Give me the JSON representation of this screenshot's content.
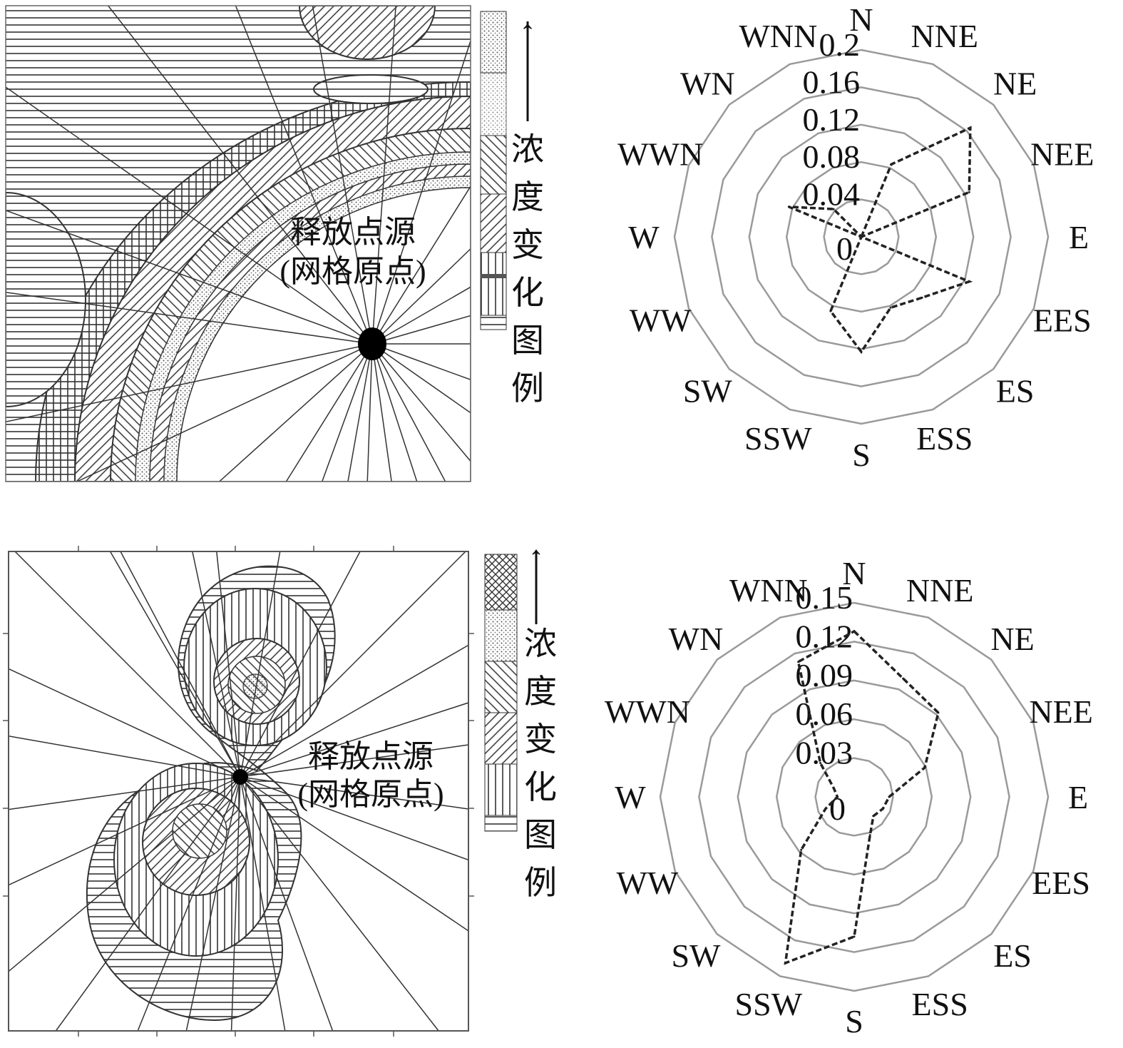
{
  "contour_maps": [
    {
      "source_label": "释放点源",
      "source_sublabel": "(网格原点)",
      "legend_title": [
        "浓",
        "度",
        "变",
        "化",
        "图",
        "例"
      ],
      "legend_arrow": "↑"
    },
    {
      "source_label": "释放点源",
      "source_sublabel": "(网格原点)",
      "legend_title": [
        "浓",
        "度",
        "变",
        "化",
        "图",
        "例"
      ],
      "legend_arrow": "↑"
    }
  ],
  "chart_data": [
    {
      "type": "radar",
      "categories": [
        "N",
        "NNE",
        "NE",
        "NEE",
        "E",
        "EES",
        "ES",
        "ESS",
        "S",
        "SSW",
        "SW",
        "WW",
        "W",
        "WWN",
        "WN",
        "WNN"
      ],
      "values": [
        0,
        0.084,
        0.165,
        0.125,
        0,
        0.125,
        0.092,
        0.082,
        0.123,
        0.086,
        0,
        0,
        0,
        0.084,
        0.042,
        0
      ],
      "ticks": [
        "0",
        "0.04",
        "0.08",
        "0.12",
        "0.16",
        "0.2"
      ],
      "rlim": [
        0,
        0.2
      ],
      "line_style": "dashed",
      "line_color": "#222222",
      "grid_color": "#9a9a9a"
    },
    {
      "type": "radar",
      "categories": [
        "N",
        "NNE",
        "NE",
        "NEE",
        "E",
        "EES",
        "ES",
        "ESS",
        "S",
        "SSW",
        "SW",
        "WW",
        "W",
        "WWN",
        "WN",
        "WNN"
      ],
      "values": [
        0.128,
        0.099,
        0.092,
        0.059,
        0.027,
        0.024,
        0.021,
        0.032,
        0.108,
        0.139,
        0.058,
        0.024,
        0.013,
        0.017,
        0.037,
        0.113
      ],
      "ticks": [
        "0",
        "0.03",
        "0.06",
        "0.09",
        "0.12",
        "0.15"
      ],
      "rlim": [
        0,
        0.15
      ],
      "line_style": "dashed",
      "line_color": "#222222",
      "grid_color": "#9a9a9a"
    }
  ]
}
